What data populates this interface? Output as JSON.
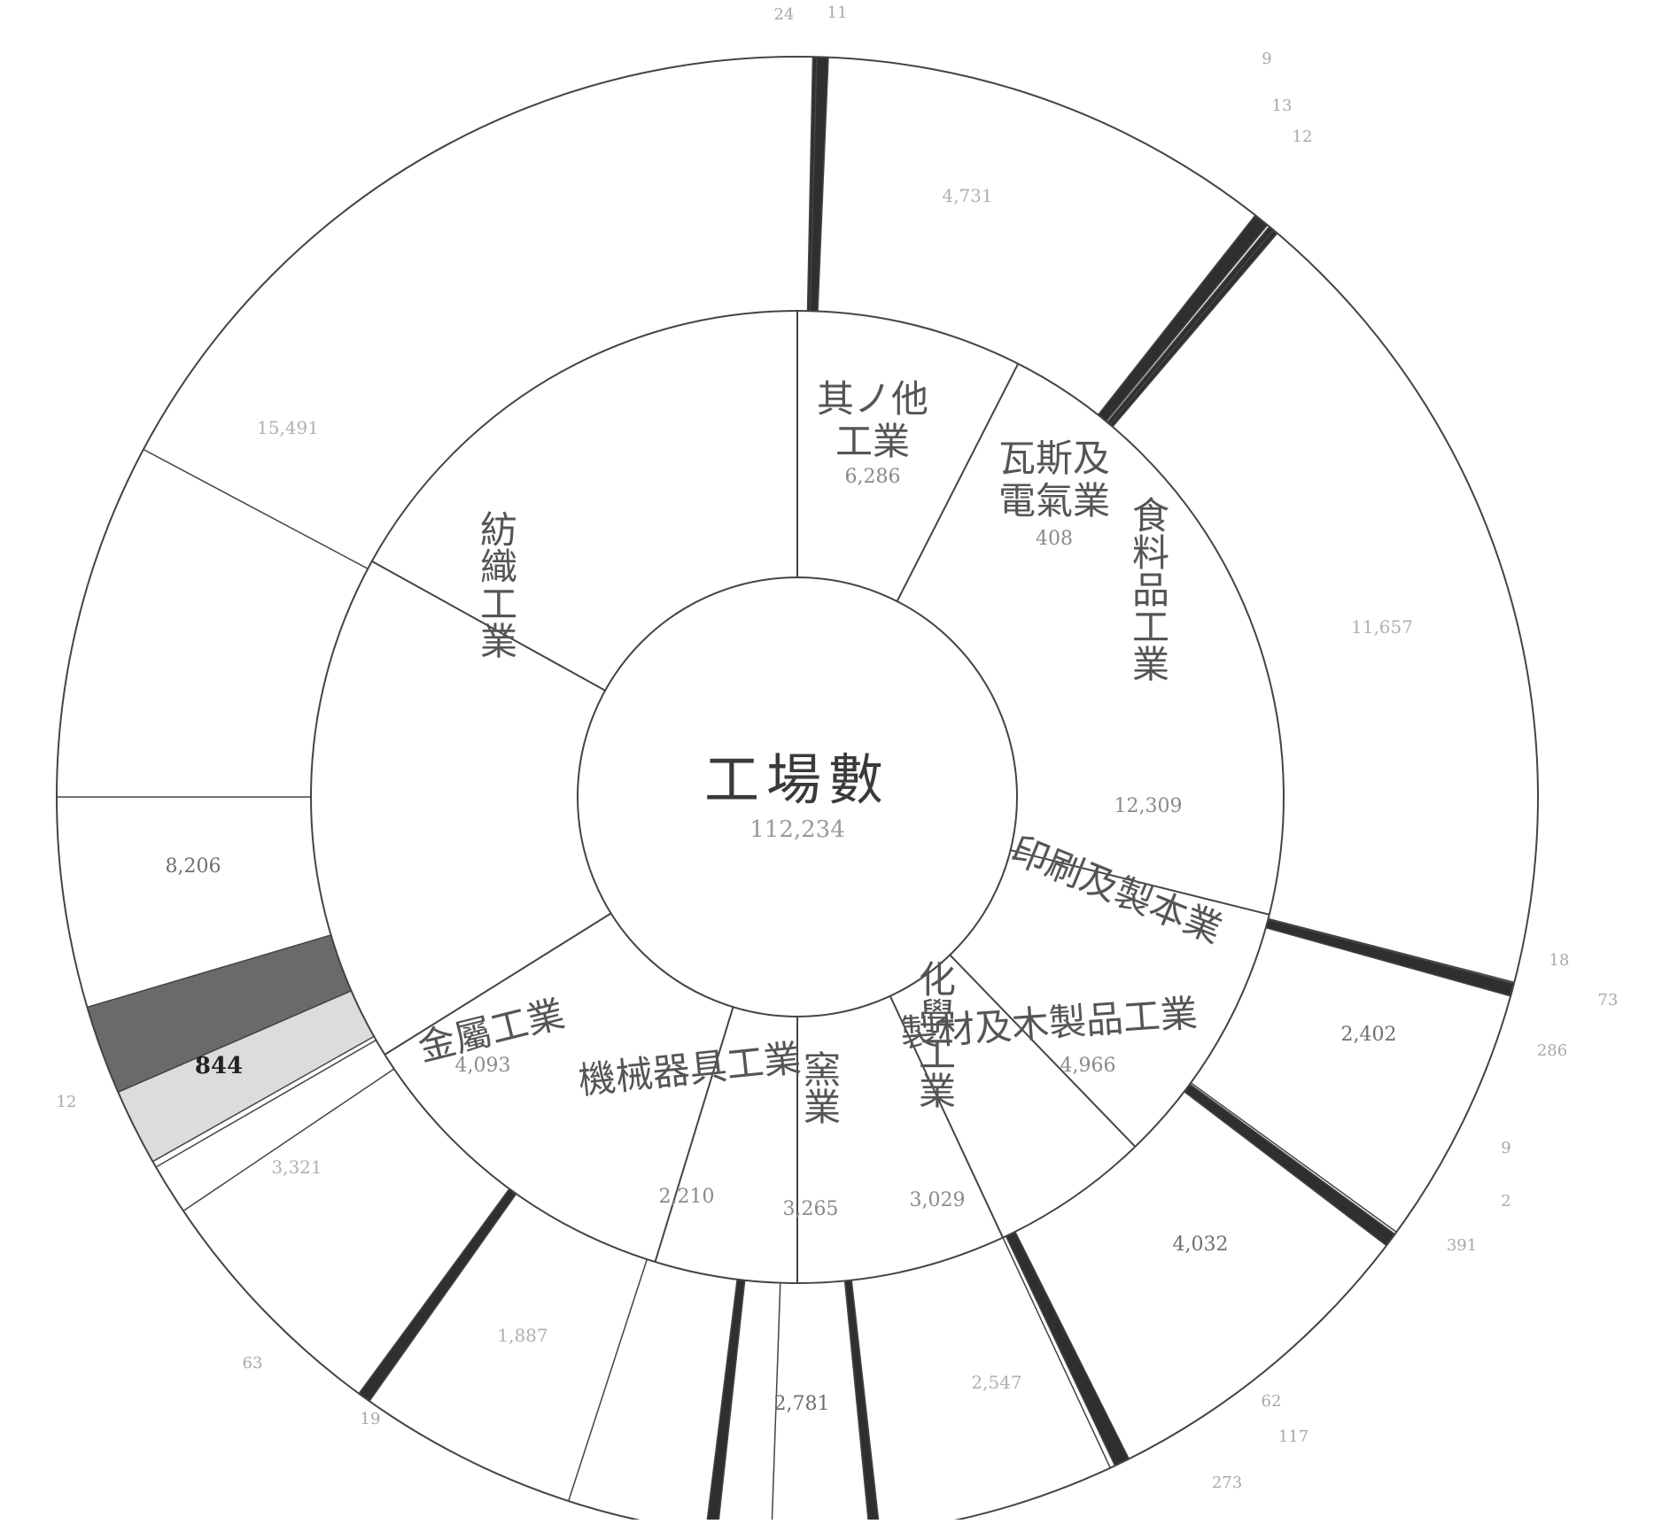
{
  "chart_data": {
    "type": "sunburst",
    "title": "工場數",
    "total": "112,234",
    "colors": {
      "line": "#444444",
      "dark": "#2f2f2f",
      "medium": "#6a6a6a",
      "light": "#dcdcdc",
      "white": "#ffffff"
    },
    "inner_ring": [
      {
        "name": "其ノ他",
        "name2": "工業",
        "value": "6,286"
      },
      {
        "name": "瓦斯及",
        "name2": "電氣業",
        "value": "408"
      },
      {
        "name": "食料品工業",
        "value": "12,309"
      },
      {
        "name": "印刷及製本業",
        "value": ""
      },
      {
        "name": "製材及木製品工業",
        "value": "4,966"
      },
      {
        "name": "化學工業",
        "value": "3,029"
      },
      {
        "name": "窯業",
        "value": "3,265"
      },
      {
        "name": "機械器具工業",
        "value": "2,210"
      },
      {
        "name": "金屬工業",
        "value": "4,093"
      },
      {
        "name": "紡織工業",
        "value": ""
      }
    ],
    "outer_values": {
      "o_textile_a": "15,491",
      "o_textile_b": "8,206",
      "o_textile_bold": "844",
      "o_metal": "3,321",
      "o_machine": "1,887",
      "o_ceramic": "2,781",
      "o_chem": "2,547",
      "o_wood": "4,032",
      "o_print": "2,402",
      "o_food": "11,657",
      "o_other": "4,731"
    },
    "edge_labels": {
      "e_top1": "24",
      "e_top2": "11",
      "e_gas1": "9",
      "e_gas2": "13",
      "e_gas3": "12",
      "e_print1": "18",
      "e_print2": "73",
      "e_print3": "286",
      "e_wood1": "9",
      "e_wood2": "2",
      "e_wood3": "391",
      "e_chem1": "62",
      "e_chem2": "117",
      "e_chem3": "273",
      "e_metal1": "63",
      "e_metal2": "19",
      "e_textile": "12"
    }
  }
}
